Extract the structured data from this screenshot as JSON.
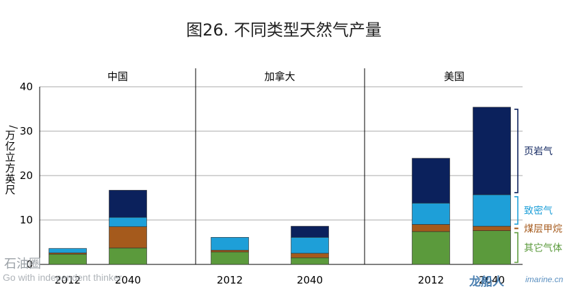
{
  "chart_data": {
    "type": "bar",
    "stacked": true,
    "title": "图26. 不同类型天然气产量",
    "ylabel": "万亿立方英尺",
    "ylim": [
      0,
      40
    ],
    "yticks": [
      0,
      10,
      20,
      30,
      40
    ],
    "grid": true,
    "legend_placement": "right, bracketed",
    "panels": [
      {
        "name": "中国",
        "categories": [
          "2012",
          "2040"
        ]
      },
      {
        "name": "加拿大",
        "categories": [
          "2012",
          "2040"
        ]
      },
      {
        "name": "美国",
        "categories": [
          "2012",
          "2040"
        ]
      }
    ],
    "series": [
      {
        "name": "其它气体",
        "color": "#5b9a3c",
        "values": [
          [
            2.3,
            3.7
          ],
          [
            2.8,
            1.5
          ],
          [
            7.4,
            7.6
          ]
        ]
      },
      {
        "name": "煤层甲烷",
        "color": "#a55a1c",
        "values": [
          [
            0.3,
            4.8
          ],
          [
            0.4,
            1.0
          ],
          [
            1.6,
            1.0
          ]
        ]
      },
      {
        "name": "致密气",
        "color": "#1e9fd8",
        "values": [
          [
            1.0,
            2.1
          ],
          [
            2.9,
            3.6
          ],
          [
            4.8,
            7.1
          ]
        ]
      },
      {
        "name": "页岩气",
        "color": "#0b215c",
        "values": [
          [
            0.0,
            6.1
          ],
          [
            0.0,
            2.5
          ],
          [
            10.1,
            19.7
          ]
        ]
      }
    ]
  },
  "watermarks": {
    "left_main": "石油圈",
    "left_sub": "Go with independent thinker",
    "right_main": "龙船人",
    "right_url": "imarine.cn"
  }
}
